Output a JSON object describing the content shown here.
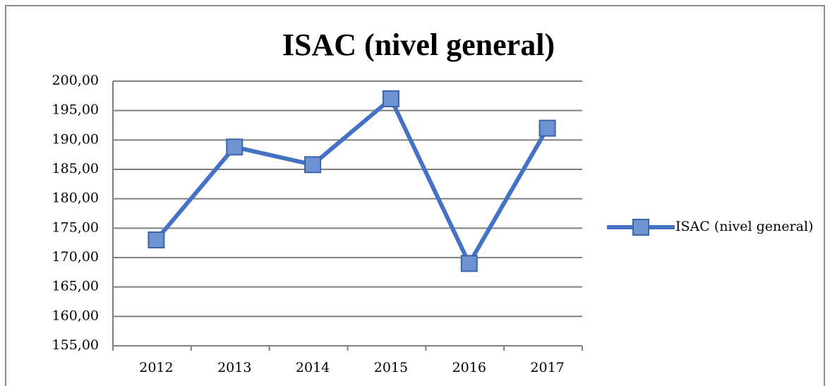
{
  "chart_data": {
    "type": "line",
    "title": "ISAC (nivel general)",
    "categories": [
      "2012",
      "2013",
      "2014",
      "2015",
      "2016",
      "2017"
    ],
    "series": [
      {
        "name": "ISAC (nivel general)",
        "color": "#4472c4",
        "values": [
          173,
          188.8,
          185.8,
          197,
          169,
          192
        ]
      }
    ],
    "ylim": [
      155,
      200
    ],
    "yticks": [
      {
        "value": 155,
        "label": "155,00"
      },
      {
        "value": 160,
        "label": "160,00"
      },
      {
        "value": 165,
        "label": "165,00"
      },
      {
        "value": 170,
        "label": "170,00"
      },
      {
        "value": 175,
        "label": "175,00"
      },
      {
        "value": 180,
        "label": "180,00"
      },
      {
        "value": 185,
        "label": "185,00"
      },
      {
        "value": 190,
        "label": "190,00"
      },
      {
        "value": 195,
        "label": "195,00"
      },
      {
        "value": 200,
        "label": "200,00"
      }
    ],
    "grid": true,
    "legend": "right"
  }
}
